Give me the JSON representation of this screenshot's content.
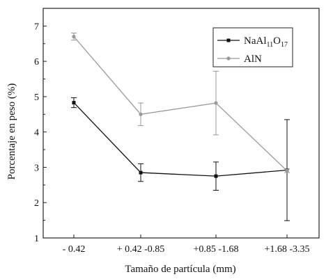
{
  "chart_data": {
    "type": "line",
    "xlabel": "Tamaño de partícula (mm)",
    "ylabel": "Porcentaje en peso (%)",
    "ylim": [
      1,
      7.5
    ],
    "yticks": [
      1,
      2,
      3,
      4,
      5,
      6,
      7
    ],
    "categories": [
      "- 0.42",
      "+ 0.42 -0.85",
      "+0.85 -1.68",
      "+1.68 -3.35"
    ],
    "grid": false,
    "legend": "top-right",
    "series": [
      {
        "name": "NaAl11O17",
        "name_parts": [
          {
            "text": "NaAl",
            "sub": false
          },
          {
            "text": "11",
            "sub": true
          },
          {
            "text": "O",
            "sub": false
          },
          {
            "text": "17",
            "sub": true
          }
        ],
        "color": "#111111",
        "marker": "square",
        "values": [
          4.83,
          2.85,
          2.75,
          2.92
        ],
        "errors": [
          0.14,
          0.25,
          0.4,
          1.43
        ]
      },
      {
        "name": "AlN",
        "name_parts": [
          {
            "text": "AlN",
            "sub": false
          }
        ],
        "color": "#999999",
        "marker": "circle",
        "values": [
          6.7,
          4.5,
          4.82,
          2.9
        ],
        "errors": [
          0.1,
          0.32,
          0.9,
          0.05
        ]
      }
    ]
  }
}
